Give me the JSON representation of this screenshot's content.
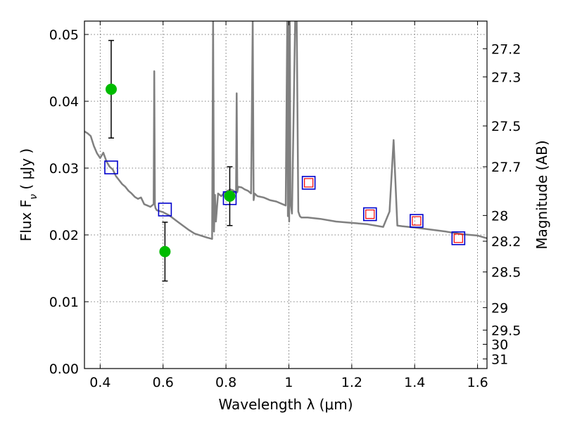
{
  "chart_data": {
    "type": "scatter",
    "xlabel": "Wavelength  λ (μm)",
    "ylabel": {
      "main": "Flux  F",
      "sub": "ν",
      "unit": "  ( μJy )"
    },
    "y2label": "Magnitude (AB)",
    "xlim": [
      0.35,
      1.63
    ],
    "ylim": [
      0.0,
      0.052
    ],
    "grid": true,
    "x_ticks": [
      0.4,
      0.6,
      0.8,
      1.0,
      1.2,
      1.4,
      1.6
    ],
    "x_tick_labels": [
      "0.4",
      "0.6",
      "0.8",
      "1",
      "1.2",
      "1.4",
      "1.6"
    ],
    "y_ticks": [
      0.0,
      0.01,
      0.02,
      0.03,
      0.04,
      0.05
    ],
    "y_tick_labels": [
      "0.00",
      "0.01",
      "0.02",
      "0.03",
      "0.04",
      "0.05"
    ],
    "mag_ticks": [
      27.2,
      27.3,
      27.5,
      27.7,
      28,
      28.2,
      28.5,
      29,
      29.5,
      30,
      31
    ],
    "mag_tick_labels": [
      "27.2",
      "27.3",
      "27.5",
      "27.7",
      "28",
      "28.2",
      "28.5",
      "29",
      "29.5",
      "30",
      "31"
    ],
    "series": [
      {
        "style": "line",
        "color": "#808080",
        "x": [
          0.35,
          0.36,
          0.37,
          0.38,
          0.39,
          0.4,
          0.41,
          0.42,
          0.43,
          0.44,
          0.45,
          0.46,
          0.47,
          0.48,
          0.49,
          0.5,
          0.51,
          0.52,
          0.53,
          0.54,
          0.55,
          0.56,
          0.57,
          0.572,
          0.574,
          0.576,
          0.58,
          0.6,
          0.62,
          0.64,
          0.66,
          0.68,
          0.7,
          0.72,
          0.74,
          0.756,
          0.759,
          0.762,
          0.765,
          0.768,
          0.775,
          0.785,
          0.795,
          0.805,
          0.815,
          0.825,
          0.832,
          0.834,
          0.836,
          0.838,
          0.84,
          0.85,
          0.86,
          0.87,
          0.88,
          0.885,
          0.888,
          0.891,
          0.9,
          0.92,
          0.94,
          0.96,
          0.98,
          0.99,
          0.995,
          0.997,
          0.999,
          1.001,
          1.003,
          1.005,
          1.01,
          1.02,
          1.025,
          1.03,
          1.035,
          1.04,
          1.06,
          1.1,
          1.15,
          1.2,
          1.25,
          1.3,
          1.32,
          1.333,
          1.345,
          1.36,
          1.4,
          1.45,
          1.5,
          1.55,
          1.6,
          1.63
        ],
        "y": [
          0.0355,
          0.0352,
          0.0348,
          0.0333,
          0.0322,
          0.0315,
          0.0323,
          0.031,
          0.0302,
          0.0298,
          0.0288,
          0.0282,
          0.0276,
          0.0272,
          0.0266,
          0.0262,
          0.0257,
          0.0254,
          0.0256,
          0.0246,
          0.0244,
          0.0242,
          0.0246,
          0.0445,
          0.0245,
          0.024,
          0.0237,
          0.0234,
          0.0229,
          0.0222,
          0.0215,
          0.0208,
          0.0202,
          0.0199,
          0.0196,
          0.0194,
          0.052,
          0.0205,
          0.026,
          0.022,
          0.0262,
          0.0258,
          0.0263,
          0.0266,
          0.0268,
          0.0266,
          0.0262,
          0.0412,
          0.0264,
          0.027,
          0.0272,
          0.0271,
          0.0268,
          0.0266,
          0.0262,
          0.052,
          0.0252,
          0.0262,
          0.0258,
          0.0256,
          0.0252,
          0.025,
          0.0246,
          0.0244,
          0.052,
          0.0228,
          0.052,
          0.022,
          0.052,
          0.025,
          0.0232,
          0.052,
          0.052,
          0.0235,
          0.0228,
          0.0226,
          0.0226,
          0.0224,
          0.022,
          0.0218,
          0.0216,
          0.0212,
          0.0235,
          0.0342,
          0.0214,
          0.0213,
          0.0211,
          0.0208,
          0.0205,
          0.0201,
          0.0199,
          0.0195
        ]
      },
      {
        "style": "open-square",
        "color": "#0000cc",
        "x": [
          0.435,
          0.606,
          0.812,
          1.063,
          1.258,
          1.406,
          1.539
        ],
        "y": [
          0.0301,
          0.0238,
          0.0255,
          0.0278,
          0.0231,
          0.0221,
          0.0195
        ]
      },
      {
        "style": "small-open-square",
        "color": "#ff0000",
        "x": [
          1.063,
          1.258,
          1.406,
          1.539
        ],
        "y": [
          0.0278,
          0.0231,
          0.0221,
          0.0195
        ]
      },
      {
        "style": "filled-circle-errorbar",
        "color": "#00bb00",
        "x": [
          0.435,
          0.606,
          0.812
        ],
        "y": [
          0.0418,
          0.0175,
          0.0258
        ],
        "err": [
          0.0073,
          0.0044,
          0.0044
        ]
      }
    ]
  }
}
